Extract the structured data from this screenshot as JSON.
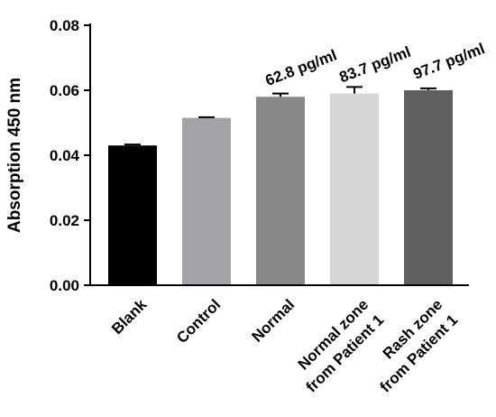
{
  "chart_data": {
    "type": "bar",
    "categories": [
      "Blank",
      "Control",
      "Normal",
      "Normal zone\nfrom Patient 1",
      "Rash zone\nfrom Patient 1"
    ],
    "values": [
      0.043,
      0.0515,
      0.058,
      0.059,
      0.06
    ],
    "errors": [
      0.0003,
      0.0002,
      0.001,
      0.002,
      0.0006
    ],
    "bar_colors": [
      "#000000",
      "#a3a3a8",
      "#888888",
      "#d6d6d6",
      "#5f5f5f"
    ],
    "data_labels": [
      "",
      "",
      "62.8 pg/ml",
      "83.7 pg/ml",
      "97.7 pg/ml"
    ],
    "title": "",
    "xlabel": "",
    "ylabel": "Absorption 450 nm",
    "ylim": [
      0,
      0.08
    ],
    "yticks": [
      "0.00",
      "0.02",
      "0.04",
      "0.06",
      "0.08"
    ],
    "grid": false,
    "legend": "none"
  }
}
